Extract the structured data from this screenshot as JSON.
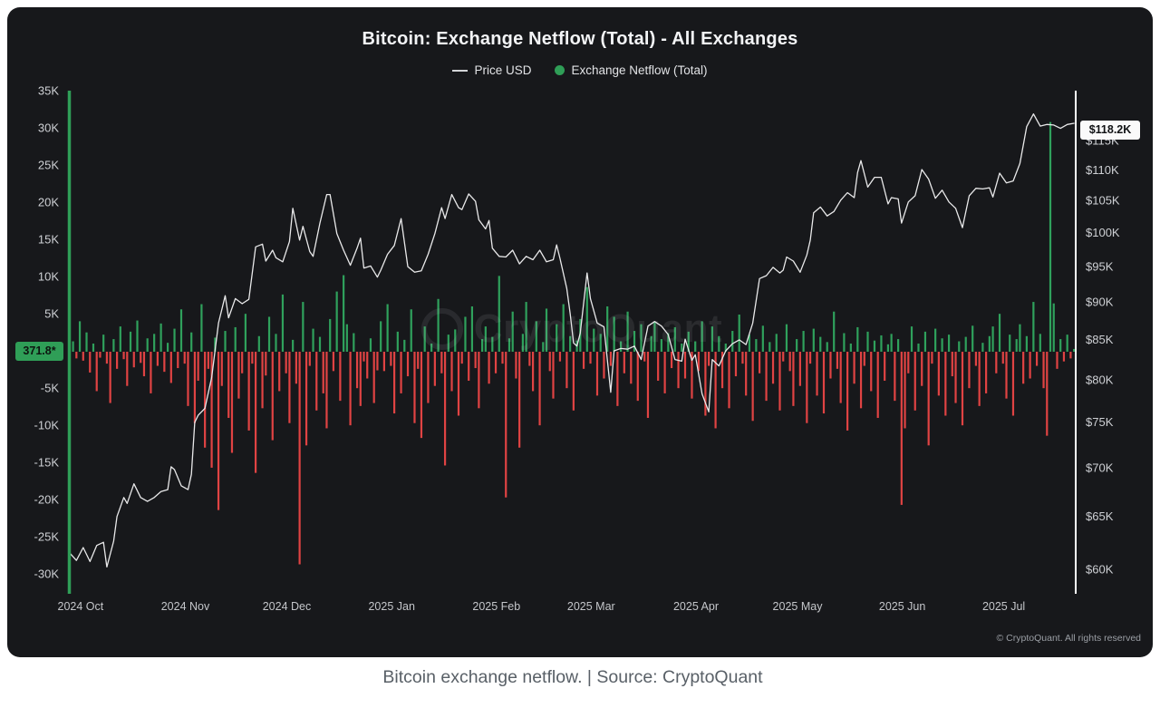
{
  "page": {
    "caption": "Bitcoin exchange netflow. | Source: CryptoQuant"
  },
  "chart": {
    "title": "Bitcoin: Exchange Netflow (Total) - All Exchanges",
    "legend": [
      {
        "label": "Price USD",
        "marker": "line",
        "color": "#d3d5d8"
      },
      {
        "label": "Exchange Netflow (Total)",
        "marker": "circle",
        "color": "#2f9e57"
      }
    ],
    "watermark": "CryptoQuant",
    "copyright": "© CryptoQuant. All rights reserved",
    "left_badge": "371.8*",
    "right_badge": "$118.2K"
  },
  "chart_data": {
    "type": "bar+line",
    "title": "Bitcoin: Exchange Netflow (Total) - All Exchanges",
    "x_axis": {
      "start_date": "2024-10-01",
      "total_days": 298,
      "months": [
        {
          "label": "2024 Oct",
          "day": 0
        },
        {
          "label": "2024 Nov",
          "day": 31
        },
        {
          "label": "2024 Dec",
          "day": 61
        },
        {
          "label": "2025 Jan",
          "day": 92
        },
        {
          "label": "2025 Feb",
          "day": 123
        },
        {
          "label": "2025 Mar",
          "day": 151
        },
        {
          "label": "2025 Apr",
          "day": 182
        },
        {
          "label": "2025 May",
          "day": 212
        },
        {
          "label": "2025 Jun",
          "day": 243
        },
        {
          "label": "2025 Jul",
          "day": 273
        }
      ]
    },
    "left_axis": {
      "title": "Exchange Netflow (Total)",
      "unit": "K BTC",
      "scale": "linear",
      "range": [
        -31.5,
        35
      ],
      "ticks": [
        35,
        30,
        25,
        20,
        15,
        10,
        5,
        -5,
        -10,
        -15,
        -20,
        -25,
        -30
      ],
      "tick_labels": [
        "35K",
        "30K",
        "25K",
        "20K",
        "15K",
        "10K",
        "5K",
        "-5K",
        "-10K",
        "-15K",
        "-20K",
        "-25K",
        "-30K"
      ],
      "latest_value": 371.8,
      "latest_label": "371.8*",
      "axis_color": "#2f9e57"
    },
    "right_axis": {
      "title": "Price USD",
      "unit": "K USD",
      "scale": "log",
      "range": [
        60,
        121
      ],
      "ticks": [
        115,
        110,
        105,
        100,
        95,
        90,
        85,
        80,
        75,
        70,
        65,
        60
      ],
      "tick_labels": [
        "$115K",
        "$110K",
        "$105K",
        "$100K",
        "$95K",
        "$90K",
        "$85K",
        "$80K",
        "$75K",
        "$70K",
        "$65K",
        "$60K"
      ],
      "latest_value": 118.2,
      "latest_label": "$118.2K",
      "axis_color": "#ffffff"
    },
    "series": [
      {
        "name": "Exchange Netflow (Total)",
        "type": "bar",
        "unit": "K BTC",
        "freq": "daily",
        "color_positive": "#2fa15c",
        "color_negative": "#e04343",
        "values": [
          8.2,
          1.4,
          -0.9,
          4.1,
          -1.2,
          2.6,
          -2.8,
          1.1,
          -5.3,
          -0.8,
          2.3,
          -1.6,
          -6.9,
          1.7,
          -2.3,
          3.4,
          -1.0,
          -4.6,
          2.7,
          -2.1,
          4.2,
          -1.5,
          -3.3,
          1.8,
          -5.6,
          2.4,
          -1.9,
          3.8,
          -2.7,
          1.2,
          -4.2,
          3.1,
          -2.2,
          5.7,
          -1.6,
          -7.3,
          2.6,
          -9.6,
          -3.9,
          6.4,
          -12.9,
          -2.3,
          -15.6,
          1.9,
          -21.3,
          -4.6,
          2.8,
          -8.9,
          -13.6,
          3.3,
          -6.3,
          -2.9,
          5.1,
          -10.6,
          -1.6,
          -16.3,
          2.1,
          -7.6,
          -3.2,
          4.7,
          -11.9,
          2.4,
          -5.3,
          7.7,
          -2.9,
          -9.6,
          1.6,
          -4.3,
          -28.6,
          6.7,
          -12.6,
          -1.9,
          3.1,
          -7.9,
          2.0,
          -5.6,
          -10.3,
          4.4,
          -2.6,
          8.1,
          -6.6,
          10.3,
          3.7,
          -9.9,
          2.5,
          -4.9,
          -7.3,
          -1.3,
          -3.6,
          1.8,
          -6.9,
          -2.5,
          4.1,
          -2.6,
          6.4,
          -1.9,
          -8.3,
          2.7,
          -5.6,
          1.6,
          -3.3,
          5.7,
          -9.6,
          -2.3,
          -11.6,
          3.4,
          -6.9,
          1.1,
          -4.6,
          7.1,
          -2.9,
          -15.3,
          2.3,
          -5.3,
          3.0,
          -8.6,
          -1.6,
          4.7,
          -3.9,
          6.1,
          -2.2,
          -7.6,
          1.7,
          3.4,
          -4.3,
          2.0,
          -2.9,
          10.2,
          -1.6,
          -19.6,
          1.8,
          5.4,
          -3.6,
          -12.9,
          2.4,
          6.7,
          -1.9,
          -5.3,
          4.1,
          -9.9,
          1.3,
          5.8,
          -2.6,
          -6.3,
          3.7,
          -1.3,
          6.4,
          -4.9,
          2.1,
          -7.9,
          1.5,
          4.4,
          -2.3,
          8.7,
          -1.6,
          3.1,
          -5.9,
          2.4,
          -3.6,
          6.1,
          -1.9,
          4.7,
          -7.3,
          1.4,
          -2.9,
          5.4,
          -4.3,
          2.8,
          -6.6,
          3.7,
          -1.3,
          -8.9,
          2.1,
          4.0,
          -3.9,
          1.7,
          -5.6,
          2.5,
          -2.2,
          3.3,
          -4.9,
          1.1,
          -3.6,
          2.7,
          -6.3,
          1.4,
          -2.6,
          4.1,
          -8.6,
          -1.9,
          3.4,
          -10.3,
          2.1,
          -4.9,
          1.1,
          -7.6,
          2.8,
          -3.3,
          5.0,
          -1.6,
          -5.9,
          2.3,
          -9.3,
          1.7,
          -2.9,
          3.5,
          -6.6,
          1.3,
          -4.3,
          2.4,
          -7.9,
          -1.3,
          3.7,
          -2.6,
          -7.3,
          1.7,
          -4.6,
          2.8,
          -9.6,
          -1.6,
          3.1,
          -5.9,
          2.0,
          -8.3,
          1.3,
          -3.6,
          5.4,
          -2.3,
          -6.9,
          2.5,
          -10.6,
          1.1,
          -4.3,
          3.3,
          -7.6,
          -1.9,
          2.7,
          -5.3,
          1.5,
          -8.9,
          2.2,
          -3.9,
          1.0,
          2.4,
          -6.6,
          1.7,
          -20.6,
          -10.3,
          -2.9,
          3.4,
          -7.9,
          1.1,
          -4.6,
          2.7,
          -12.6,
          -1.6,
          3.1,
          -5.9,
          1.8,
          -8.6,
          2.3,
          -3.3,
          -6.9,
          1.4,
          -9.9,
          2.0,
          -4.9,
          3.5,
          -1.9,
          -7.3,
          1.2,
          -5.6,
          2.1,
          3.4,
          -2.9,
          5.1,
          -1.6,
          -6.3,
          2.3,
          -8.6,
          1.7,
          3.7,
          -4.3,
          2.1,
          -3.6,
          6.7,
          -1.9,
          2.4,
          -4.9,
          -11.3,
          30.9,
          6.5,
          -2.3,
          1.7,
          -1.3,
          2.3,
          -0.9,
          0.3718
        ]
      },
      {
        "name": "Price USD",
        "type": "line",
        "unit": "K USD",
        "color": "#e9e9ea",
        "points": [
          [
            0,
            61.6
          ],
          [
            2,
            60.9
          ],
          [
            4,
            62.1
          ],
          [
            6,
            60.8
          ],
          [
            8,
            62.3
          ],
          [
            10,
            62.6
          ],
          [
            11,
            60.3
          ],
          [
            13,
            62.7
          ],
          [
            14,
            65.1
          ],
          [
            16,
            67.0
          ],
          [
            17,
            66.4
          ],
          [
            19,
            68.4
          ],
          [
            21,
            67.0
          ],
          [
            23,
            66.6
          ],
          [
            25,
            67.0
          ],
          [
            27,
            67.6
          ],
          [
            29,
            67.8
          ],
          [
            30,
            70.2
          ],
          [
            31,
            69.9
          ],
          [
            33,
            68.2
          ],
          [
            35,
            67.8
          ],
          [
            36,
            69.4
          ],
          [
            37,
            75.1
          ],
          [
            38,
            75.9
          ],
          [
            40,
            76.7
          ],
          [
            42,
            80.4
          ],
          [
            44,
            87.3
          ],
          [
            46,
            91.0
          ],
          [
            47,
            88.0
          ],
          [
            49,
            90.6
          ],
          [
            51,
            89.9
          ],
          [
            53,
            90.5
          ],
          [
            55,
            98.0
          ],
          [
            57,
            98.4
          ],
          [
            58,
            95.9
          ],
          [
            60,
            97.5
          ],
          [
            61,
            96.4
          ],
          [
            63,
            95.8
          ],
          [
            65,
            98.8
          ],
          [
            66,
            103.9
          ],
          [
            68,
            99.0
          ],
          [
            69,
            101.1
          ],
          [
            71,
            97.3
          ],
          [
            72,
            96.6
          ],
          [
            74,
            101.6
          ],
          [
            76,
            106.1
          ],
          [
            77,
            106.1
          ],
          [
            79,
            100.0
          ],
          [
            81,
            97.5
          ],
          [
            83,
            95.3
          ],
          [
            85,
            97.8
          ],
          [
            86,
            99.3
          ],
          [
            87,
            94.9
          ],
          [
            89,
            95.2
          ],
          [
            91,
            93.6
          ],
          [
            92,
            94.6
          ],
          [
            94,
            96.9
          ],
          [
            96,
            98.2
          ],
          [
            98,
            102.3
          ],
          [
            100,
            95.1
          ],
          [
            102,
            94.3
          ],
          [
            104,
            94.5
          ],
          [
            106,
            96.9
          ],
          [
            108,
            100.0
          ],
          [
            110,
            104.0
          ],
          [
            111,
            102.3
          ],
          [
            113,
            106.1
          ],
          [
            115,
            104.0
          ],
          [
            116,
            103.7
          ],
          [
            118,
            106.2
          ],
          [
            120,
            105.0
          ],
          [
            121,
            102.1
          ],
          [
            123,
            100.7
          ],
          [
            124,
            102.0
          ],
          [
            125,
            97.8
          ],
          [
            127,
            96.6
          ],
          [
            129,
            96.5
          ],
          [
            131,
            97.5
          ],
          [
            133,
            95.5
          ],
          [
            135,
            96.6
          ],
          [
            137,
            96.1
          ],
          [
            139,
            97.5
          ],
          [
            141,
            95.8
          ],
          [
            143,
            96.1
          ],
          [
            144,
            98.3
          ],
          [
            145,
            96.3
          ],
          [
            147,
            92.0
          ],
          [
            148,
            88.6
          ],
          [
            149,
            84.7
          ],
          [
            150,
            84.3
          ],
          [
            151,
            86.0
          ],
          [
            153,
            94.2
          ],
          [
            154,
            90.6
          ],
          [
            156,
            87.3
          ],
          [
            158,
            86.8
          ],
          [
            160,
            78.6
          ],
          [
            161,
            83.7
          ],
          [
            163,
            84.0
          ],
          [
            165,
            83.9
          ],
          [
            167,
            84.3
          ],
          [
            169,
            82.6
          ],
          [
            171,
            86.9
          ],
          [
            173,
            87.5
          ],
          [
            175,
            86.9
          ],
          [
            177,
            85.8
          ],
          [
            179,
            82.6
          ],
          [
            181,
            82.4
          ],
          [
            182,
            85.2
          ],
          [
            184,
            82.5
          ],
          [
            185,
            83.2
          ],
          [
            187,
            78.4
          ],
          [
            189,
            76.3
          ],
          [
            190,
            82.6
          ],
          [
            192,
            81.8
          ],
          [
            194,
            83.7
          ],
          [
            196,
            84.6
          ],
          [
            198,
            85.1
          ],
          [
            200,
            84.5
          ],
          [
            202,
            87.3
          ],
          [
            204,
            93.4
          ],
          [
            206,
            93.8
          ],
          [
            208,
            95.0
          ],
          [
            210,
            94.2
          ],
          [
            211,
            94.6
          ],
          [
            212,
            96.5
          ],
          [
            214,
            95.9
          ],
          [
            216,
            94.3
          ],
          [
            218,
            96.8
          ],
          [
            219,
            99.0
          ],
          [
            220,
            103.2
          ],
          [
            222,
            104.1
          ],
          [
            224,
            102.7
          ],
          [
            226,
            103.4
          ],
          [
            228,
            105.2
          ],
          [
            230,
            106.4
          ],
          [
            232,
            105.6
          ],
          [
            233,
            109.7
          ],
          [
            234,
            111.7
          ],
          [
            236,
            107.3
          ],
          [
            238,
            108.9
          ],
          [
            240,
            108.9
          ],
          [
            242,
            104.6
          ],
          [
            243,
            105.6
          ],
          [
            245,
            105.4
          ],
          [
            246,
            101.6
          ],
          [
            248,
            104.9
          ],
          [
            250,
            105.9
          ],
          [
            252,
            110.2
          ],
          [
            254,
            108.6
          ],
          [
            256,
            105.5
          ],
          [
            258,
            106.8
          ],
          [
            260,
            104.9
          ],
          [
            262,
            103.9
          ],
          [
            264,
            100.9
          ],
          [
            266,
            105.9
          ],
          [
            268,
            107.1
          ],
          [
            270,
            107.0
          ],
          [
            272,
            107.2
          ],
          [
            273,
            105.7
          ],
          [
            275,
            109.6
          ],
          [
            277,
            108.0
          ],
          [
            279,
            108.3
          ],
          [
            281,
            111.2
          ],
          [
            283,
            117.6
          ],
          [
            285,
            119.9
          ],
          [
            287,
            117.7
          ],
          [
            289,
            118.0
          ],
          [
            291,
            117.9
          ],
          [
            293,
            117.3
          ],
          [
            295,
            118.0
          ],
          [
            297,
            118.2
          ]
        ]
      }
    ]
  }
}
